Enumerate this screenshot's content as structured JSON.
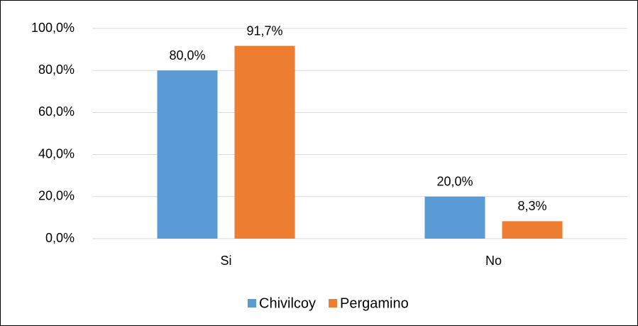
{
  "chart_data": {
    "type": "bar",
    "categories": [
      "Si",
      "No"
    ],
    "series": [
      {
        "name": "Chivilcoy",
        "color": "#5b9bd5",
        "values": [
          80.0,
          20.0
        ],
        "value_labels": [
          "80,0%",
          "20,0%"
        ]
      },
      {
        "name": "Pergamino",
        "color": "#ed7d31",
        "values": [
          91.7,
          8.3
        ],
        "value_labels": [
          "91,7%",
          "8,3%"
        ]
      }
    ],
    "ylim": [
      0,
      100
    ],
    "yticks": [
      {
        "value": 0,
        "label": "0,0%"
      },
      {
        "value": 20,
        "label": "20,0%"
      },
      {
        "value": 40,
        "label": "40,0%"
      },
      {
        "value": 60,
        "label": "60,0%"
      },
      {
        "value": 80,
        "label": "80,0%"
      },
      {
        "value": 100,
        "label": "100,0%"
      }
    ],
    "grid": true,
    "legend": "bottom"
  }
}
